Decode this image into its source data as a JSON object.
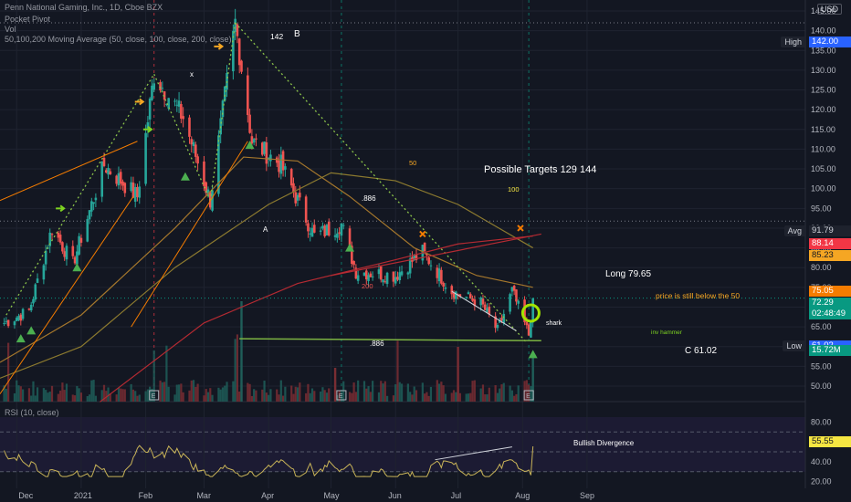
{
  "header": {
    "title": "Penn National Gaming, Inc., 1D, Cboe BZX",
    "indicators": [
      "Pocket Pivot",
      "Vol",
      "50,100,200 Moving Average (50, close, 100, close, 200, close)"
    ],
    "rsi_label": "RSI (10, close)",
    "currency": "USD"
  },
  "price_axis": {
    "ticks": [
      "145.00",
      "140.00",
      "135.00",
      "130.00",
      "125.00",
      "120.00",
      "115.00",
      "110.00",
      "105.00",
      "100.00",
      "95.00",
      "90.00",
      "85.00",
      "80.00",
      "75.00",
      "70.00",
      "65.00",
      "60.00",
      "55.00",
      "50.00"
    ],
    "badges": {
      "high_label": "High",
      "high_value": "142.00",
      "avg_label": "Avg",
      "avg_value": "91.79",
      "ma_red": "88.14",
      "ma_orange": "85.23",
      "ma_50": "75.05",
      "last_price": "72.29",
      "countdown": "02:48:49",
      "low_label": "Low",
      "low_value": "61.02",
      "volume": "15.72M"
    },
    "colors": {
      "high": "#2962ff",
      "red": "#f23645",
      "orange": "#f57c00",
      "yellow": "#f5a623",
      "green": "#089981"
    }
  },
  "rsi_axis": {
    "ticks": [
      "80.00",
      "60.00",
      "40.00",
      "20.00"
    ],
    "value": "55.55"
  },
  "time_axis": {
    "ticks": [
      "Dec",
      "2021",
      "Feb",
      "Mar",
      "Apr",
      "May",
      "Jun",
      "Jul",
      "Aug",
      "Sep"
    ]
  },
  "annotations": {
    "targets": "Possible Targets  129  144",
    "long": "Long 79.65",
    "below50": "price is still below the 50",
    "shark": "shark",
    "inv_hammer": "inv hammer",
    "c_label": "C 61.02",
    "a": "A",
    "b": "B",
    "x": "x",
    "b_price": "142",
    "fib886": ".886",
    "fib886b": ".886",
    "ma50": "50",
    "ma100": "100",
    "ma200": "200",
    "bull_div": "Bullish Divergence",
    "earn": "E"
  },
  "chart_data": {
    "type": "candlestick",
    "symbol": "Penn National Gaming, Inc.",
    "timeframe": "1D",
    "ylim": [
      45,
      147
    ],
    "rsi_ylim": [
      15,
      90
    ],
    "series_price_anchors": [
      {
        "date": "2020-11-25",
        "close": 66
      },
      {
        "date": "2020-12-07",
        "close": 69
      },
      {
        "date": "2020-12-18",
        "close": 90
      },
      {
        "date": "2020-12-28",
        "close": 81
      },
      {
        "date": "2021-01-12",
        "close": 106
      },
      {
        "date": "2021-01-28",
        "close": 98
      },
      {
        "date": "2021-02-05",
        "close": 129
      },
      {
        "date": "2021-02-19",
        "close": 118
      },
      {
        "date": "2021-03-04",
        "close": 97
      },
      {
        "date": "2021-03-16",
        "close": 142
      },
      {
        "date": "2021-03-24",
        "close": 112
      },
      {
        "date": "2021-04-07",
        "close": 106
      },
      {
        "date": "2021-04-23",
        "close": 88
      },
      {
        "date": "2021-05-06",
        "close": 91
      },
      {
        "date": "2021-05-13",
        "close": 79
      },
      {
        "date": "2021-06-01",
        "close": 78
      },
      {
        "date": "2021-06-14",
        "close": 84
      },
      {
        "date": "2021-06-28",
        "close": 74
      },
      {
        "date": "2021-07-12",
        "close": 71
      },
      {
        "date": "2021-07-20",
        "close": 64
      },
      {
        "date": "2021-07-27",
        "close": 74
      },
      {
        "date": "2021-08-04",
        "close": 63
      },
      {
        "date": "2021-08-06",
        "close": 72.29
      }
    ],
    "moving_averages": [
      {
        "name": "50",
        "last": 75.05
      },
      {
        "name": "100",
        "last": 85.23
      },
      {
        "name": "200",
        "last": 88.14
      }
    ],
    "rsi_last": 55.55
  }
}
